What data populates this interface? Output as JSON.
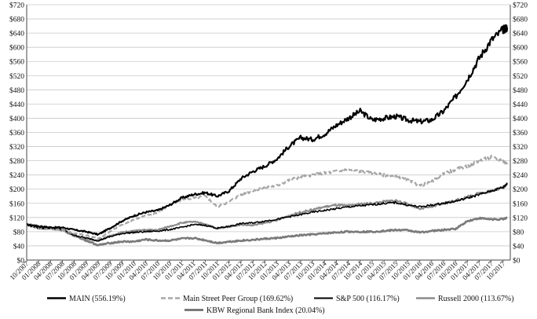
{
  "chart_data": {
    "type": "line",
    "title": "",
    "xlabel": "",
    "ylabel": "",
    "grid": true,
    "legend_placement": "bottom",
    "ylim": [
      0,
      720
    ],
    "y_ticks": [
      0,
      40,
      80,
      120,
      160,
      200,
      240,
      280,
      320,
      360,
      400,
      440,
      480,
      520,
      560,
      600,
      640,
      680,
      720
    ],
    "y_tick_labels": [
      "$0",
      "$40",
      "$80",
      "$120",
      "$160",
      "$200",
      "$240",
      "$280",
      "$320",
      "$360",
      "$400",
      "$440",
      "$480",
      "$520",
      "$560",
      "$600",
      "$640",
      "$680",
      "$720"
    ],
    "x_tick_labels": [
      "10/2007",
      "01/2008",
      "04/2008",
      "07/2008",
      "10/2008",
      "01/2009",
      "04/2009",
      "07/2009",
      "10/2009",
      "01/2010",
      "04/2010",
      "07/2010",
      "10/2010",
      "01/2011",
      "04/2011",
      "07/2011",
      "10/2011",
      "01/2012",
      "04/2012",
      "07/2012",
      "10/2012",
      "01/2013",
      "04/2013",
      "07/2013",
      "10/2013",
      "01/2014",
      "04/2014",
      "07/2014",
      "10/2014",
      "01/2015",
      "04/2015",
      "07/2015",
      "10/2015",
      "01/2016",
      "04/2016",
      "07/2016",
      "10/2016",
      "01/2017",
      "04/2017",
      "07/2017",
      "10/2017"
    ],
    "x": [
      "10/2007",
      "01/2008",
      "04/2008",
      "07/2008",
      "10/2008",
      "01/2009",
      "04/2009",
      "07/2009",
      "10/2009",
      "01/2010",
      "04/2010",
      "07/2010",
      "10/2010",
      "01/2011",
      "04/2011",
      "07/2011",
      "10/2011",
      "01/2012",
      "04/2012",
      "07/2012",
      "10/2012",
      "01/2013",
      "04/2013",
      "07/2013",
      "10/2013",
      "01/2014",
      "04/2014",
      "07/2014",
      "10/2014",
      "01/2015",
      "04/2015",
      "07/2015",
      "10/2015",
      "01/2016",
      "04/2016",
      "07/2016",
      "10/2016",
      "01/2017",
      "04/2017",
      "07/2017",
      "10/2017",
      "12/2017"
    ],
    "series": [
      {
        "name": "MAIN (556.19%)",
        "color": "#000000",
        "dash": "solid",
        "width": 2.2,
        "values": [
          100,
          95,
          92,
          92,
          85,
          80,
          72,
          90,
          110,
          125,
          135,
          140,
          155,
          175,
          185,
          190,
          180,
          195,
          230,
          250,
          265,
          285,
          320,
          345,
          340,
          355,
          380,
          400,
          420,
          395,
          400,
          405,
          395,
          390,
          395,
          420,
          460,
          510,
          570,
          620,
          650,
          656
        ]
      },
      {
        "name": "Main Street Peer Group (169.62%)",
        "color": "#a6a6a6",
        "dash": "dashed",
        "width": 2.2,
        "values": [
          100,
          92,
          88,
          85,
          75,
          70,
          60,
          80,
          100,
          115,
          125,
          135,
          155,
          170,
          175,
          180,
          150,
          165,
          185,
          195,
          205,
          210,
          225,
          235,
          240,
          245,
          250,
          255,
          250,
          245,
          240,
          235,
          225,
          210,
          220,
          245,
          255,
          265,
          280,
          290,
          280,
          270
        ]
      },
      {
        "name": "S&P 500 (116.17%)",
        "color": "#000000",
        "dash": "solid",
        "width": 1.6,
        "values": [
          100,
          90,
          90,
          86,
          70,
          62,
          55,
          66,
          75,
          78,
          80,
          82,
          86,
          92,
          100,
          98,
          90,
          95,
          103,
          105,
          110,
          115,
          122,
          128,
          135,
          140,
          145,
          150,
          153,
          156,
          160,
          162,
          155,
          150,
          155,
          160,
          166,
          175,
          185,
          195,
          205,
          216
        ]
      },
      {
        "name": "Russell 2000 (113.67%)",
        "color": "#8c8c8c",
        "dash": "solid",
        "width": 2.2,
        "values": [
          100,
          90,
          88,
          85,
          68,
          60,
          55,
          68,
          78,
          82,
          85,
          85,
          95,
          105,
          108,
          102,
          88,
          95,
          100,
          98,
          105,
          112,
          125,
          135,
          142,
          150,
          155,
          153,
          158,
          160,
          165,
          168,
          158,
          145,
          150,
          160,
          168,
          178,
          188,
          195,
          205,
          214
        ]
      },
      {
        "name": "KBW Regional Bank Index (20.04%)",
        "color": "#7a7a7a",
        "dash": "solid",
        "width": 2.6,
        "values": [
          100,
          95,
          92,
          85,
          70,
          55,
          42,
          48,
          52,
          52,
          58,
          55,
          55,
          60,
          62,
          56,
          48,
          52,
          55,
          57,
          60,
          62,
          66,
          70,
          72,
          75,
          78,
          80,
          80,
          80,
          82,
          85,
          84,
          78,
          82,
          85,
          88,
          110,
          118,
          115,
          115,
          120
        ]
      }
    ]
  }
}
